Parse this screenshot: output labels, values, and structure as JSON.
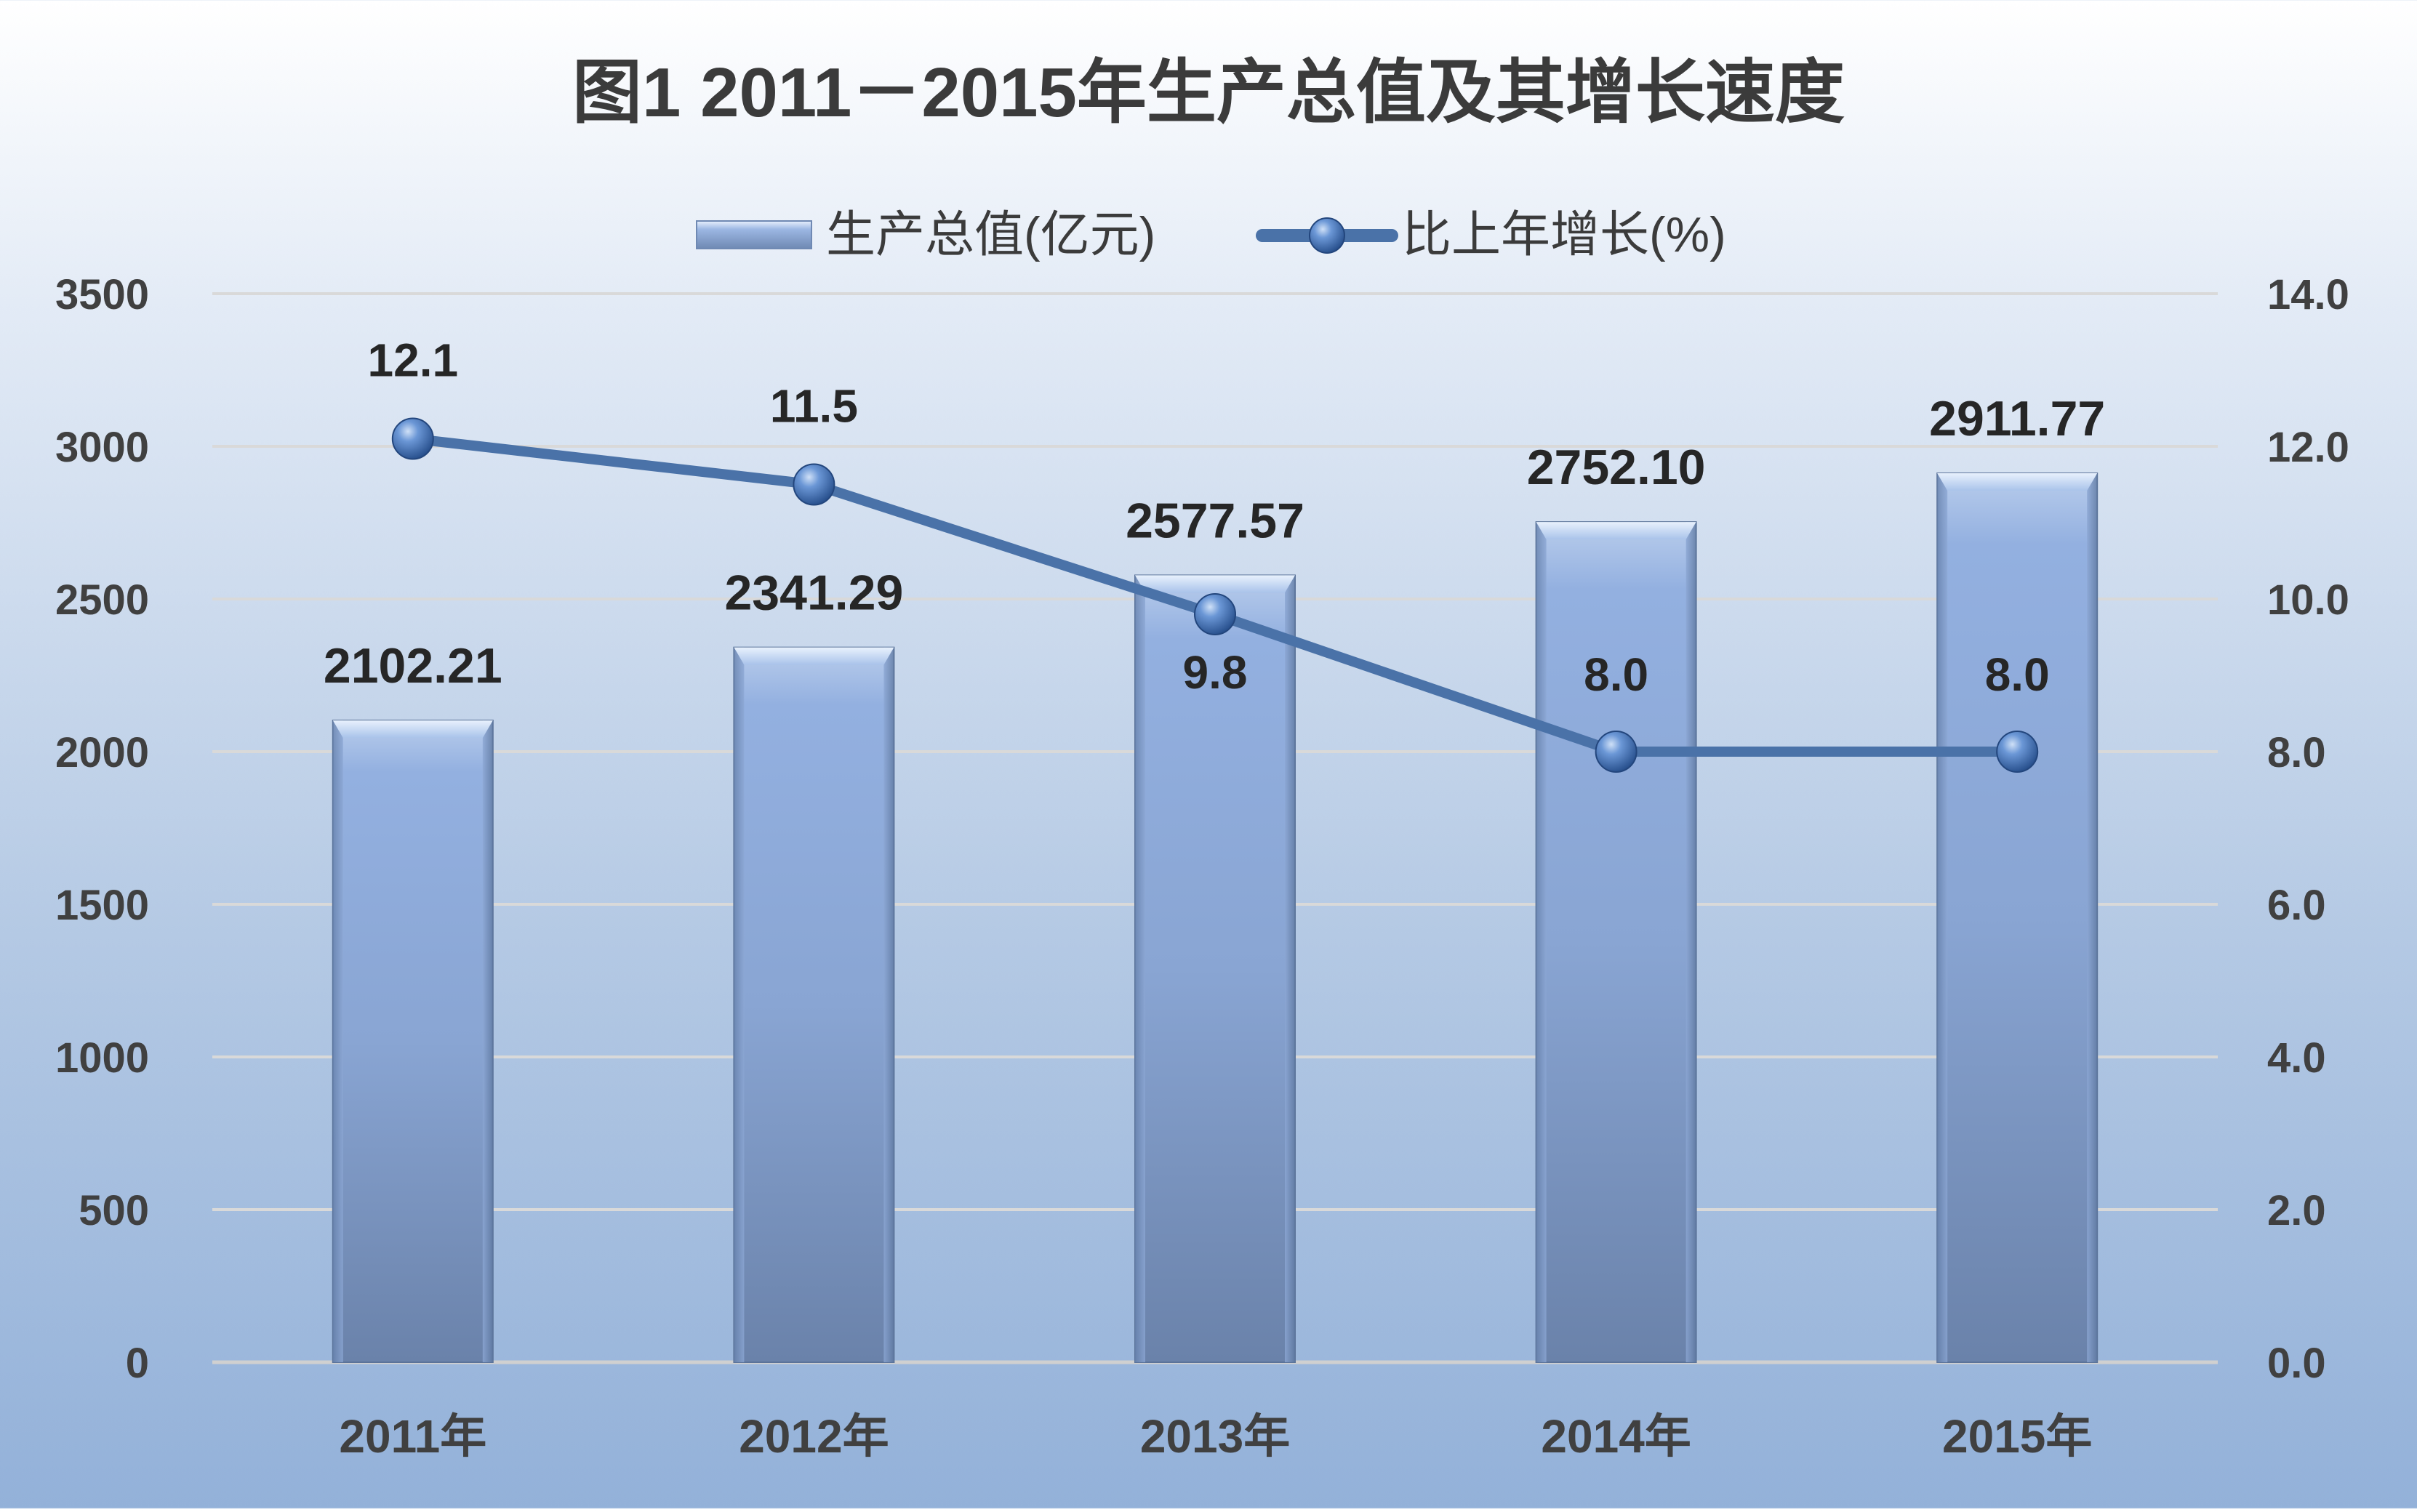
{
  "chart_data": {
    "type": "bar",
    "title": "图1  2011－2015年生产总值及其增长速度",
    "categories": [
      "2011年",
      "2012年",
      "2013年",
      "2014年",
      "2015年"
    ],
    "series": [
      {
        "name": "生产总值(亿元)",
        "type": "bar",
        "axis": "left",
        "values": [
          2102.21,
          2341.29,
          2577.57,
          2752.1,
          2911.77
        ],
        "labels": [
          "2102.21",
          "2341.29",
          "2577.57",
          "2752.10",
          "2911.77"
        ]
      },
      {
        "name": "比上年增长(%)",
        "type": "line",
        "axis": "right",
        "values": [
          12.1,
          11.5,
          9.8,
          8.0,
          8.0
        ],
        "labels": [
          "12.1",
          "11.5",
          "9.8",
          "8.0",
          "8.0"
        ]
      }
    ],
    "y_left": {
      "lim": [
        0,
        3500
      ],
      "ticks": [
        "0",
        "500",
        "1000",
        "1500",
        "2000",
        "2500",
        "3000",
        "3500"
      ]
    },
    "y_right": {
      "lim": [
        0,
        14
      ],
      "ticks": [
        "0.0",
        "2.0",
        "4.0",
        "6.0",
        "8.0",
        "10.0",
        "12.0",
        "14.0"
      ]
    },
    "grid": true,
    "legend_position": "top-center",
    "colors": {
      "bar_top": "#c4d7f0",
      "bar_mid": "#8eaadb",
      "bar_bottom": "#6a84ad",
      "line": "#4a72a8",
      "marker": "#3f6fb6",
      "grid": "#d9d9d9"
    }
  }
}
